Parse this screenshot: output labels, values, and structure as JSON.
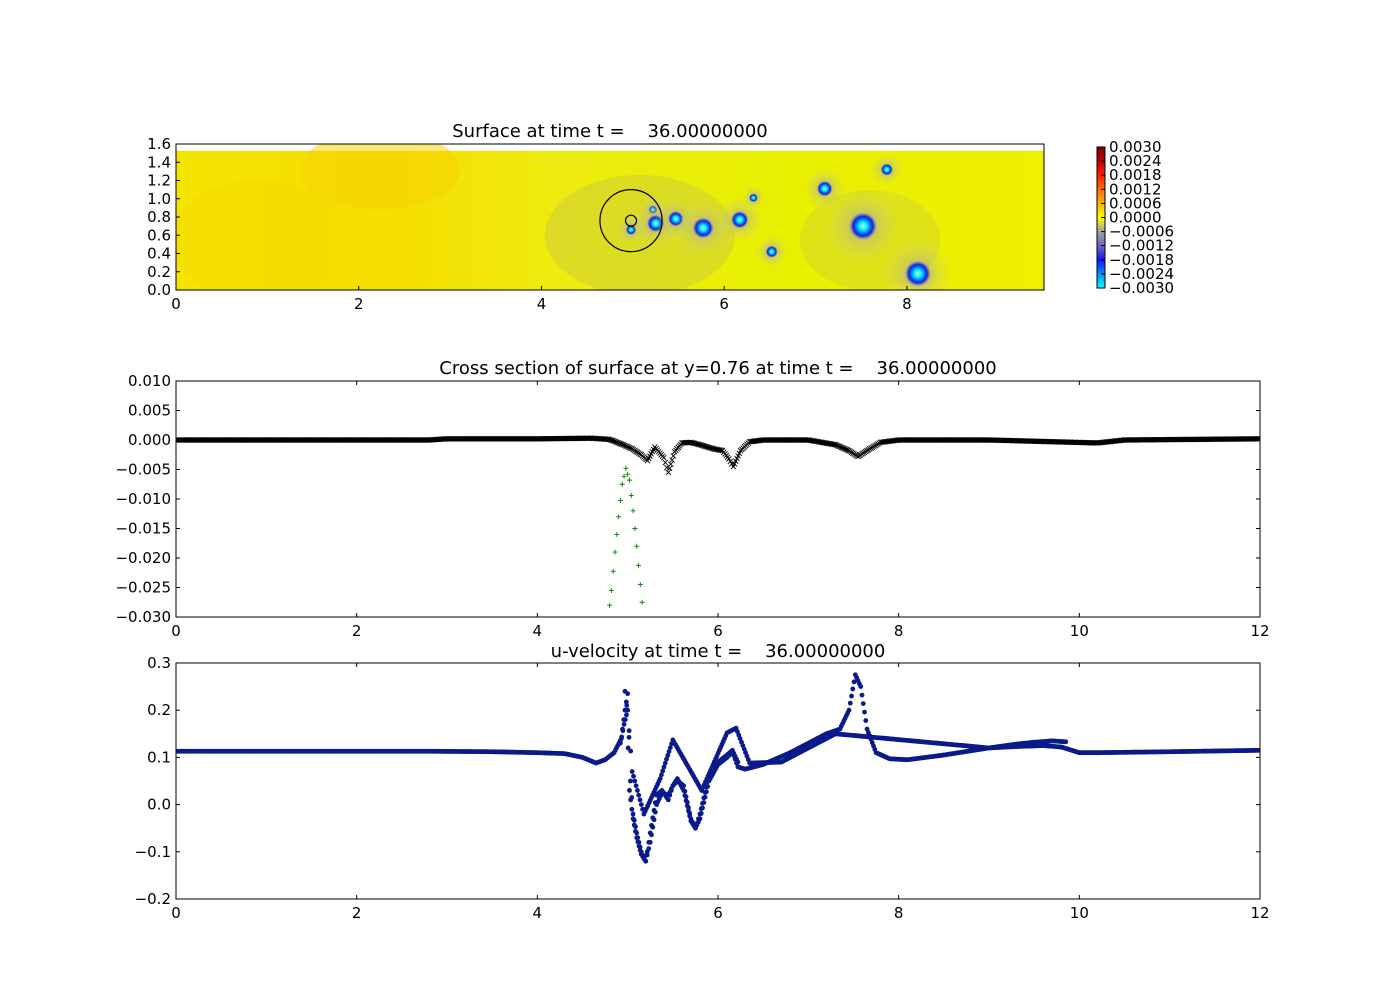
{
  "chart_data": [
    {
      "type": "heatmap",
      "title": "Surface at time t =    36.00000000",
      "xlim": [
        0,
        9.5
      ],
      "ylim": [
        0,
        1.6
      ],
      "xticks": [
        "0",
        "2",
        "4",
        "6",
        "8"
      ],
      "yticks": [
        "0.0",
        "0.2",
        "0.4",
        "0.6",
        "0.8",
        "1.0",
        "1.2",
        "1.4",
        "1.6"
      ],
      "field_range": [
        -0.003,
        0.003
      ],
      "colorbar": {
        "ticks": [
          "0.0030",
          "0.0024",
          "0.0018",
          "0.0012",
          "0.0006",
          "0.0000",
          "−0.0006",
          "−0.0012",
          "−0.0018",
          "−0.0024",
          "−0.0030"
        ],
        "colors": [
          "#7f0000",
          "#c00000",
          "#ff2000",
          "#ff7000",
          "#ffb000",
          "#ffff00",
          "#a0a0a0",
          "#6a6ac0",
          "#1414ff",
          "#0090ff",
          "#00ffff"
        ]
      },
      "depressions": [
        {
          "x": 4.98,
          "y": 0.66,
          "r": 0.06
        },
        {
          "x": 5.22,
          "y": 0.88,
          "r": 0.05
        },
        {
          "x": 5.25,
          "y": 0.73,
          "r": 0.1
        },
        {
          "x": 5.47,
          "y": 0.78,
          "r": 0.09
        },
        {
          "x": 5.77,
          "y": 0.68,
          "r": 0.12
        },
        {
          "x": 6.17,
          "y": 0.77,
          "r": 0.1
        },
        {
          "x": 6.32,
          "y": 1.01,
          "r": 0.05
        },
        {
          "x": 6.52,
          "y": 0.42,
          "r": 0.07
        },
        {
          "x": 7.1,
          "y": 1.11,
          "r": 0.09
        },
        {
          "x": 7.52,
          "y": 0.7,
          "r": 0.16
        },
        {
          "x": 7.78,
          "y": 1.32,
          "r": 0.07
        },
        {
          "x": 8.12,
          "y": 0.18,
          "r": 0.15
        }
      ],
      "circles": [
        {
          "x": 4.98,
          "y": 0.76,
          "r": 0.34
        },
        {
          "x": 4.98,
          "y": 0.76,
          "r": 0.06
        }
      ]
    },
    {
      "type": "scatter",
      "title": "Cross section of surface at y=0.76 at time t =    36.00000000",
      "xlim": [
        0,
        12
      ],
      "ylim": [
        -0.03,
        0.01
      ],
      "xticks": [
        "0",
        "2",
        "4",
        "6",
        "8",
        "10",
        "12"
      ],
      "yticks": [
        "0.010",
        "0.005",
        "0.000",
        "−0.005",
        "−0.010",
        "−0.015",
        "−0.020",
        "−0.025",
        "−0.030"
      ],
      "series": [
        {
          "marker": "x",
          "color": "#000000",
          "x": [
            0,
            2.8,
            3,
            4,
            4.6,
            4.8,
            4.95,
            5.05,
            5.15,
            5.22,
            5.3,
            5.4,
            5.45,
            5.52,
            5.6,
            5.7,
            5.8,
            5.95,
            6.05,
            6.12,
            6.17,
            6.25,
            6.35,
            6.5,
            7.0,
            7.3,
            7.45,
            7.55,
            7.65,
            7.8,
            8.0,
            9.0,
            10.2,
            10.5,
            12
          ],
          "y": [
            0.0,
            0.0,
            0.0002,
            0.0002,
            0.0003,
            0.0001,
            -0.0008,
            -0.0015,
            -0.0025,
            -0.0035,
            -0.0012,
            -0.003,
            -0.0055,
            -0.002,
            -0.0005,
            -0.0004,
            -0.0008,
            -0.0015,
            -0.0018,
            -0.0032,
            -0.0045,
            -0.0018,
            -0.0003,
            0.0,
            0.0,
            -0.0008,
            -0.0018,
            -0.0028,
            -0.0018,
            -0.0004,
            0.0,
            0.0,
            -0.0005,
            0.0,
            0.0002
          ]
        },
        {
          "marker": "+",
          "color": "#008000",
          "x": [
            4.78,
            4.82,
            4.86,
            4.9,
            4.94,
            4.98,
            5.02,
            5.06,
            5.1,
            5.14,
            5.18
          ],
          "y": [
            -0.0305,
            -0.0255,
            -0.019,
            -0.013,
            -0.0075,
            -0.0048,
            -0.0068,
            -0.012,
            -0.018,
            -0.0245,
            -0.0305
          ]
        }
      ]
    },
    {
      "type": "scatter",
      "title": "u-velocity at time t =    36.00000000",
      "xlim": [
        0,
        12
      ],
      "ylim": [
        -0.2,
        0.3
      ],
      "xticks": [
        "0",
        "2",
        "4",
        "6",
        "8",
        "10",
        "12"
      ],
      "yticks": [
        "0.3",
        "0.2",
        "0.1",
        "0.0",
        "−0.1",
        "−0.2"
      ],
      "series": [
        {
          "marker": "o",
          "color": "#0a1a8a",
          "x": [
            0,
            2.8,
            3.5,
            4.0,
            4.3,
            4.5,
            4.65,
            4.75,
            4.85,
            4.93,
            4.97,
            5.0,
            5.03,
            5.06,
            5.1,
            5.15,
            5.2,
            5.25,
            5.32,
            5.38,
            5.45,
            5.5,
            5.55,
            5.62,
            5.7,
            5.75,
            5.8,
            5.9,
            6.0,
            6.1,
            6.16,
            6.22,
            6.3,
            6.5,
            6.8,
            7.0,
            7.2,
            7.35,
            7.45,
            7.52,
            7.58,
            7.65,
            7.75,
            7.9,
            8.1,
            8.5,
            9.0,
            9.3,
            9.6,
            9.8,
            10.0,
            10.2,
            11.0,
            12.0
          ],
          "y": [
            0.113,
            0.113,
            0.112,
            0.11,
            0.108,
            0.1,
            0.088,
            0.095,
            0.11,
            0.14,
            0.2,
            0.235,
            0.05,
            -0.02,
            -0.06,
            -0.1,
            -0.12,
            -0.06,
            0.02,
            0.03,
            0.01,
            0.04,
            0.05,
            0.04,
            -0.03,
            -0.05,
            -0.03,
            0.05,
            0.085,
            0.1,
            0.112,
            0.08,
            0.075,
            0.085,
            0.11,
            0.13,
            0.15,
            0.16,
            0.2,
            0.275,
            0.25,
            0.16,
            0.11,
            0.097,
            0.095,
            0.105,
            0.12,
            0.123,
            0.125,
            0.122,
            0.11,
            0.11,
            0.112,
            0.115
          ]
        },
        {
          "marker": "o",
          "color": "#0a1a8a",
          "x": [
            4.97,
            4.99,
            5.02,
            5.06,
            5.1,
            5.15,
            5.2,
            5.25,
            5.32,
            5.38,
            5.45,
            5.5,
            5.55,
            5.62,
            5.7,
            5.75,
            5.8,
            5.9,
            6.0,
            6.1,
            6.16,
            6.22
          ],
          "y": [
            0.24,
            0.21,
            0.03,
            -0.03,
            -0.07,
            -0.105,
            -0.12,
            -0.08,
            0.0,
            0.025,
            0.02,
            0.04,
            0.055,
            0.03,
            -0.035,
            -0.05,
            -0.02,
            0.06,
            0.09,
            0.105,
            0.115,
            0.09
          ]
        },
        {
          "marker": "o",
          "color": "#0a1a8a",
          "x": [
            4.92,
            4.96,
            5.0,
            5.05,
            5.18,
            5.36,
            5.5,
            5.82,
            6.1,
            6.2,
            6.35,
            6.7,
            7.3,
            9.0,
            9.3,
            9.5,
            9.7,
            9.85
          ],
          "y": [
            0.13,
            0.17,
            0.2,
            0.07,
            -0.02,
            0.055,
            0.137,
            0.03,
            0.152,
            0.162,
            0.088,
            0.09,
            0.15,
            0.12,
            0.128,
            0.132,
            0.135,
            0.133
          ]
        }
      ]
    }
  ]
}
